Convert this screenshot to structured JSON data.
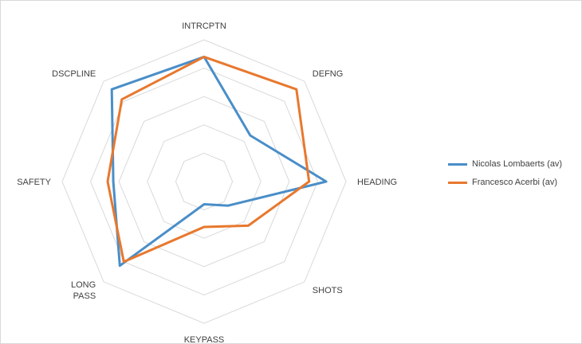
{
  "chart_data": {
    "type": "radar",
    "title": "",
    "axes": [
      "INTRCPTN",
      "DEFNG",
      "HEADING",
      "SHOTS",
      "KEYPASS",
      "LONG PASS",
      "SAFETY",
      "DSCPLINE"
    ],
    "axis_label_lines": [
      [
        "INTRCPTN"
      ],
      [
        "DEFNG"
      ],
      [
        "HEADING"
      ],
      [
        "SHOTS"
      ],
      [
        "KEYPASS"
      ],
      [
        "LONG",
        "PASS"
      ],
      [
        "SAFETY"
      ],
      [
        "DSCPLINE"
      ]
    ],
    "rmax": 5,
    "rings": 5,
    "grid": true,
    "legend_position": "right",
    "series": [
      {
        "name": "Nicolas Lombaerts (av)",
        "color": "#4a8ec8",
        "values": [
          4.4,
          2.3,
          4.3,
          1.2,
          0.8,
          4.2,
          3.2,
          4.6
        ]
      },
      {
        "name": "Francesco Acerbi (av)",
        "color": "#e8782e",
        "values": [
          4.4,
          4.6,
          3.7,
          2.2,
          1.6,
          4.0,
          3.4,
          4.1
        ]
      }
    ]
  }
}
